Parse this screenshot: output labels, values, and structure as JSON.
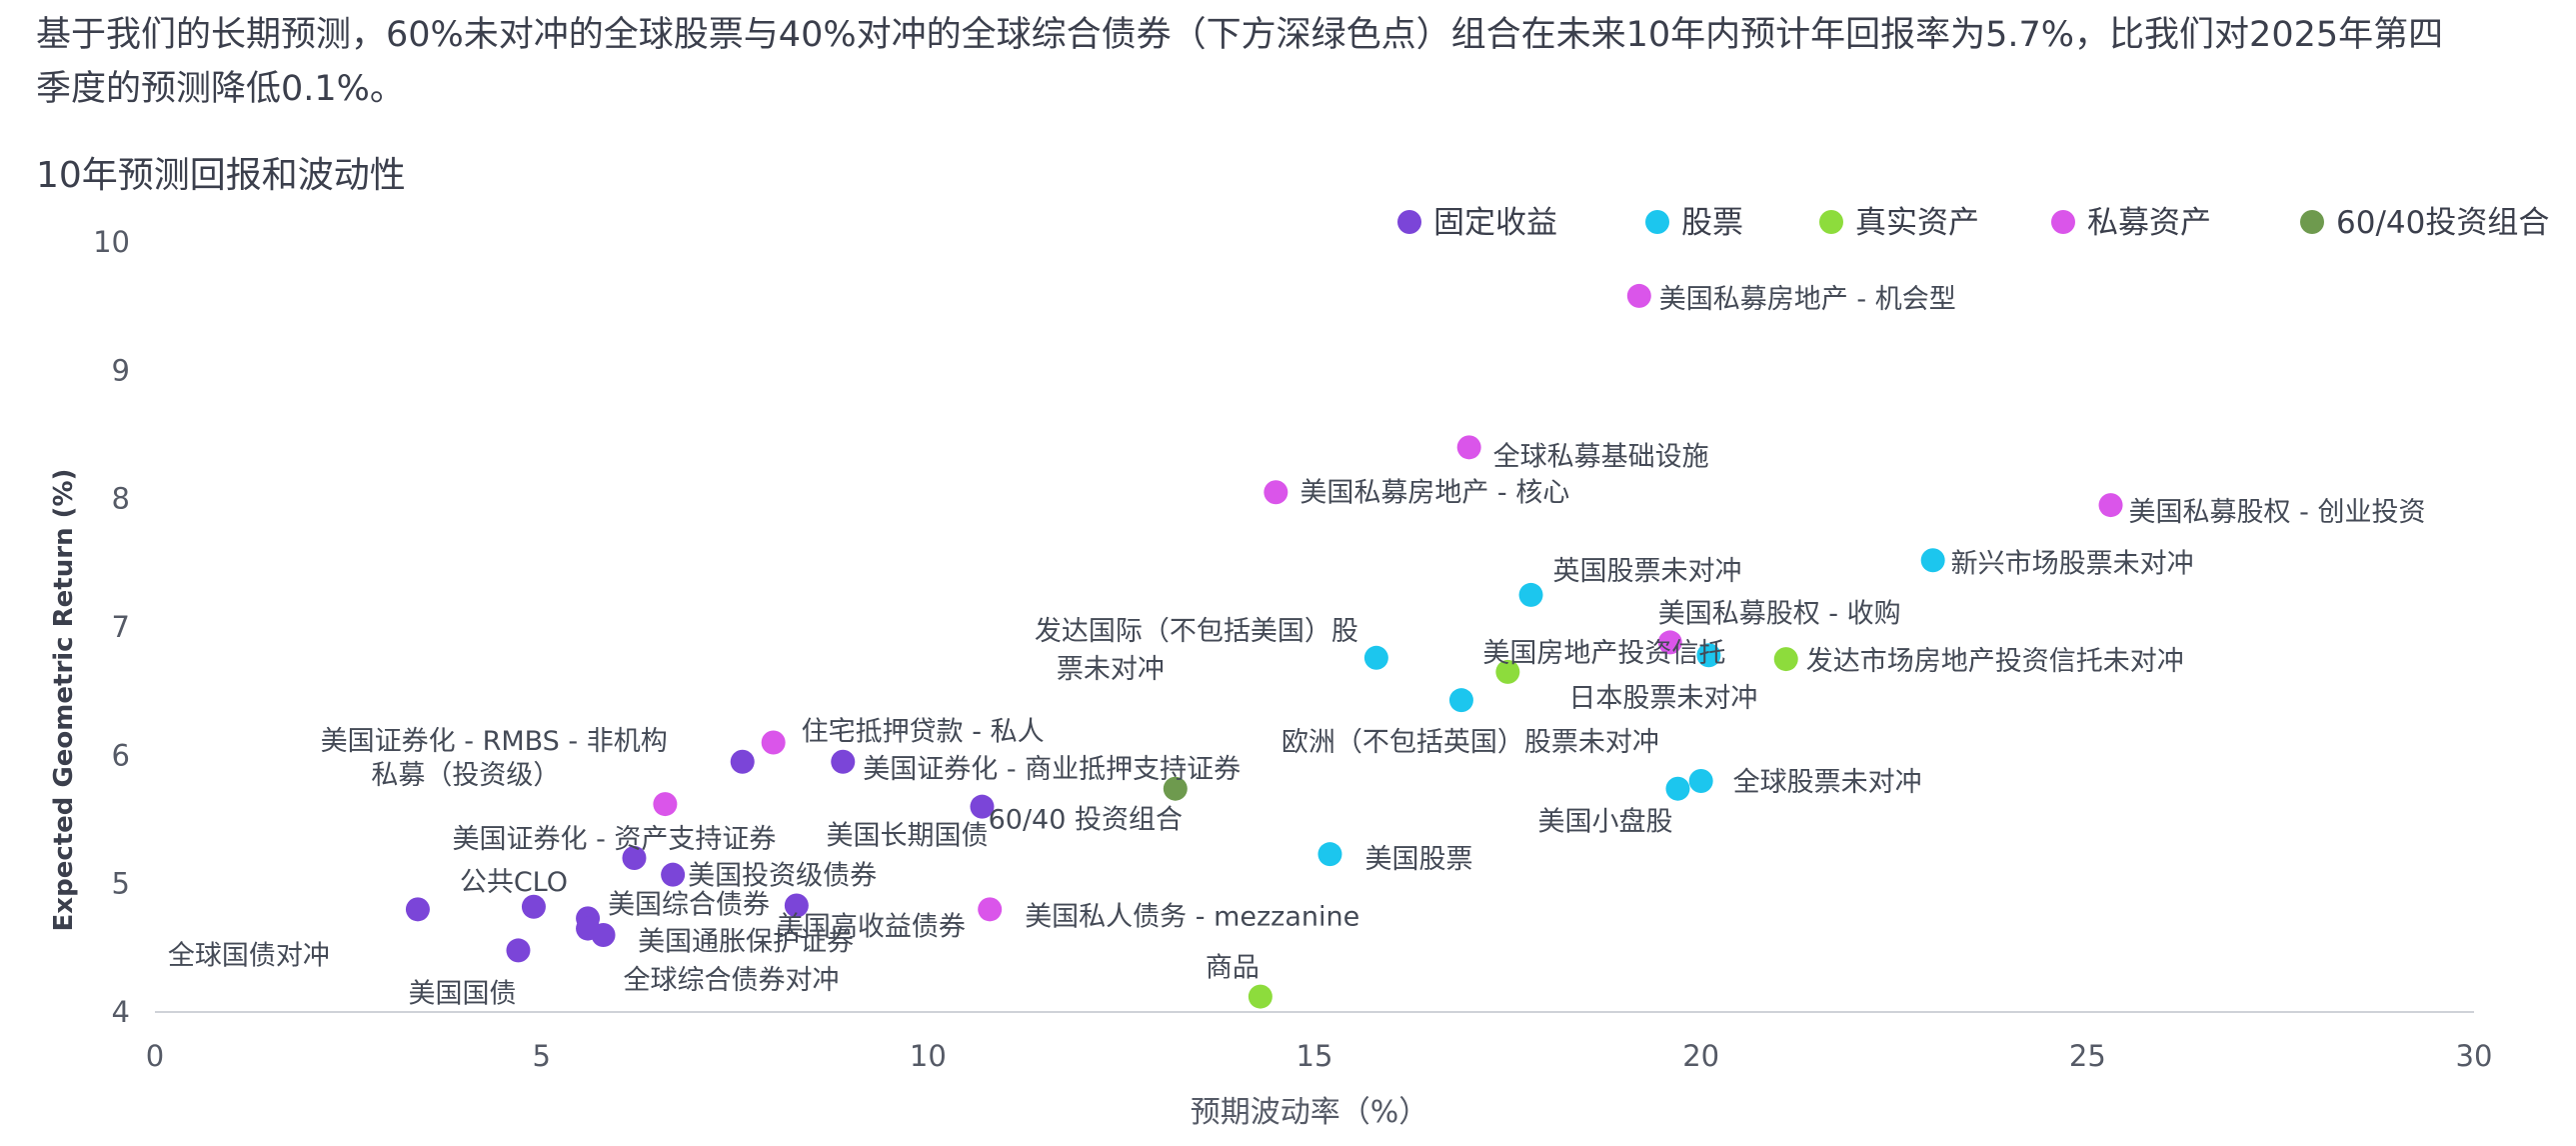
{
  "intro_text": "基于我们的长期预测，60%未对冲的全球股票与40%对冲的全球综合债券（下方深绿色点）组合在未来10年内预计年回报率为5.7%，比我们对2025年第四季度的预测降低0.1%。",
  "chart_data": {
    "type": "scatter",
    "title": "10年预测回报和波动性",
    "xlabel": "预期波动率（%）",
    "ylabel": "Expected Geometric Return (%)",
    "xlim": [
      0,
      30
    ],
    "ylim": [
      4,
      10
    ],
    "xticks": [
      "0",
      "5",
      "10",
      "15",
      "20",
      "25",
      "30"
    ],
    "yticks": [
      "4",
      "5",
      "6",
      "7",
      "8",
      "9",
      "10"
    ],
    "grid": false,
    "legend_position": "top-right",
    "categories": [
      {
        "key": "fixed",
        "name": "固定收益",
        "color": "#7b45d8"
      },
      {
        "key": "equity",
        "name": "股票",
        "color": "#1cc6ee"
      },
      {
        "key": "real",
        "name": "真实资产",
        "color": "#8ddc3c"
      },
      {
        "key": "private",
        "name": "私募资产",
        "color": "#da55ea"
      },
      {
        "key": "balanced",
        "name": "60/40投资组合",
        "color": "#6e9a4e"
      }
    ],
    "points": [
      {
        "label": "全球国债对冲",
        "x": 3.4,
        "y": 4.8,
        "category": "fixed"
      },
      {
        "label": "美国国债",
        "x": 4.7,
        "y": 4.48,
        "category": "fixed"
      },
      {
        "label": "公共CLO",
        "x": 4.9,
        "y": 4.82,
        "category": "fixed"
      },
      {
        "label": "美国综合债券",
        "x": 5.6,
        "y": 4.73,
        "category": "fixed"
      },
      {
        "label": "美国通胀保护证券",
        "x": 5.6,
        "y": 4.65,
        "category": "fixed"
      },
      {
        "label": "全球综合债券对冲",
        "x": 5.8,
        "y": 4.6,
        "category": "fixed"
      },
      {
        "label": "美国证券化 - 资产支持证券",
        "x": 6.2,
        "y": 5.2,
        "category": "fixed"
      },
      {
        "label": "美国投资级债券",
        "x": 6.7,
        "y": 5.07,
        "category": "fixed"
      },
      {
        "label": "美国证券化 - RMBS - 非机构",
        "x": 7.6,
        "y": 5.95,
        "category": "fixed"
      },
      {
        "label": "美国高收益债券",
        "x": 8.3,
        "y": 4.83,
        "category": "fixed"
      },
      {
        "label": "美国证券化 - 商业抵押支持证券",
        "x": 8.9,
        "y": 5.95,
        "category": "fixed"
      },
      {
        "label": "美国长期国债",
        "x": 10.7,
        "y": 5.6,
        "category": "fixed"
      },
      {
        "label": "私募（投资级）",
        "x": 6.6,
        "y": 5.62,
        "category": "private"
      },
      {
        "label": "住宅抵押贷款 - 私人",
        "x": 8.0,
        "y": 6.1,
        "category": "private"
      },
      {
        "label": "美国私人债务 - mezzanine",
        "x": 10.8,
        "y": 4.8,
        "category": "private"
      },
      {
        "label": "美国私募房地产 - 核心",
        "x": 14.5,
        "y": 8.05,
        "category": "private"
      },
      {
        "label": "全球私募基础设施",
        "x": 17.0,
        "y": 8.4,
        "category": "private"
      },
      {
        "label": "美国私募房地产 - 机会型",
        "x": 19.2,
        "y": 9.58,
        "category": "private"
      },
      {
        "label": "美国私募股权 - 收购",
        "x": 19.6,
        "y": 6.88,
        "category": "private"
      },
      {
        "label": "美国私募股权 - 创业投资",
        "x": 25.3,
        "y": 7.95,
        "category": "private"
      },
      {
        "label": "60/40 投资组合",
        "x": 13.2,
        "y": 5.74,
        "category": "balanced"
      },
      {
        "label": "商品",
        "x": 14.3,
        "y": 4.12,
        "category": "real"
      },
      {
        "label": "美国房地产投资信托",
        "x": 17.5,
        "y": 6.65,
        "category": "real"
      },
      {
        "label": "发达市场房地产投资信托未对冲",
        "x": 21.1,
        "y": 6.75,
        "category": "real"
      },
      {
        "label": "美国股票",
        "x": 15.2,
        "y": 5.23,
        "category": "equity"
      },
      {
        "label": "发达国际（不包括美国）股票未对冲",
        "x": 15.8,
        "y": 6.76,
        "category": "equity"
      },
      {
        "label": "欧洲（不包括英国）股票未对冲",
        "x": 16.9,
        "y": 6.43,
        "category": "equity"
      },
      {
        "label": "英国股票未对冲",
        "x": 17.8,
        "y": 7.25,
        "category": "equity"
      },
      {
        "label": "日本股票未对冲",
        "x": 20.1,
        "y": 6.78,
        "category": "equity"
      },
      {
        "label": "美国小盘股",
        "x": 19.7,
        "y": 5.74,
        "category": "equity"
      },
      {
        "label": "全球股票未对冲",
        "x": 20.0,
        "y": 5.8,
        "category": "equity"
      },
      {
        "label": "新兴市场股票未对冲",
        "x": 23.0,
        "y": 7.52,
        "category": "equity"
      }
    ]
  }
}
